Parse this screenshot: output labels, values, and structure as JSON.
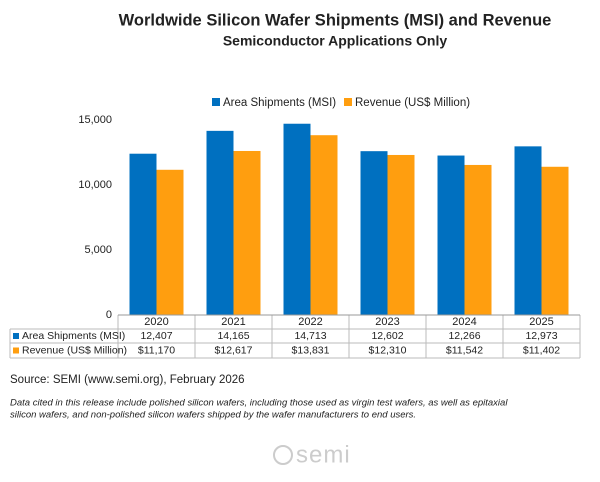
{
  "chart_data": {
    "type": "bar",
    "title": "Worldwide Silicon Wafer Shipments (MSI) and Revenue",
    "subtitle": "Semiconductor Applications Only",
    "categories": [
      "2020",
      "2021",
      "2022",
      "2023",
      "2024",
      "2025"
    ],
    "series": [
      {
        "name": "Area Shipments (MSI)",
        "color": "#0070c0",
        "values": [
          12407,
          14165,
          14713,
          12602,
          12266,
          12973
        ],
        "value_labels": [
          "12,407",
          "14,165",
          "14,713",
          "12,602",
          "12,266",
          "12,973"
        ]
      },
      {
        "name": "Revenue (US$ Million)",
        "color": "#ff9e0f",
        "values": [
          11170,
          12617,
          13831,
          12310,
          11542,
          11402
        ],
        "value_labels": [
          "$11,170",
          "$12,617",
          "$13,831",
          "$12,310",
          "$11,542",
          "$11,402"
        ]
      }
    ],
    "ylim": [
      0,
      15000
    ],
    "yticks": [
      0,
      {
        "value": 5000,
        "label": "5,000"
      },
      {
        "value": 10000,
        "label": "10,000"
      },
      {
        "value": 15000,
        "label": "15,000"
      }
    ],
    "grid": false,
    "legend": "top",
    "source": "Source: SEMI (www.semi.org), February 2026",
    "note": [
      "Data cited in this release include polished silicon wafers, including those used as virgin test wafers, as well as epitaxial",
      "silicon wafers, and non-polished silicon wafers shipped by the wafer manufacturers to end users."
    ],
    "logo": "semi"
  }
}
